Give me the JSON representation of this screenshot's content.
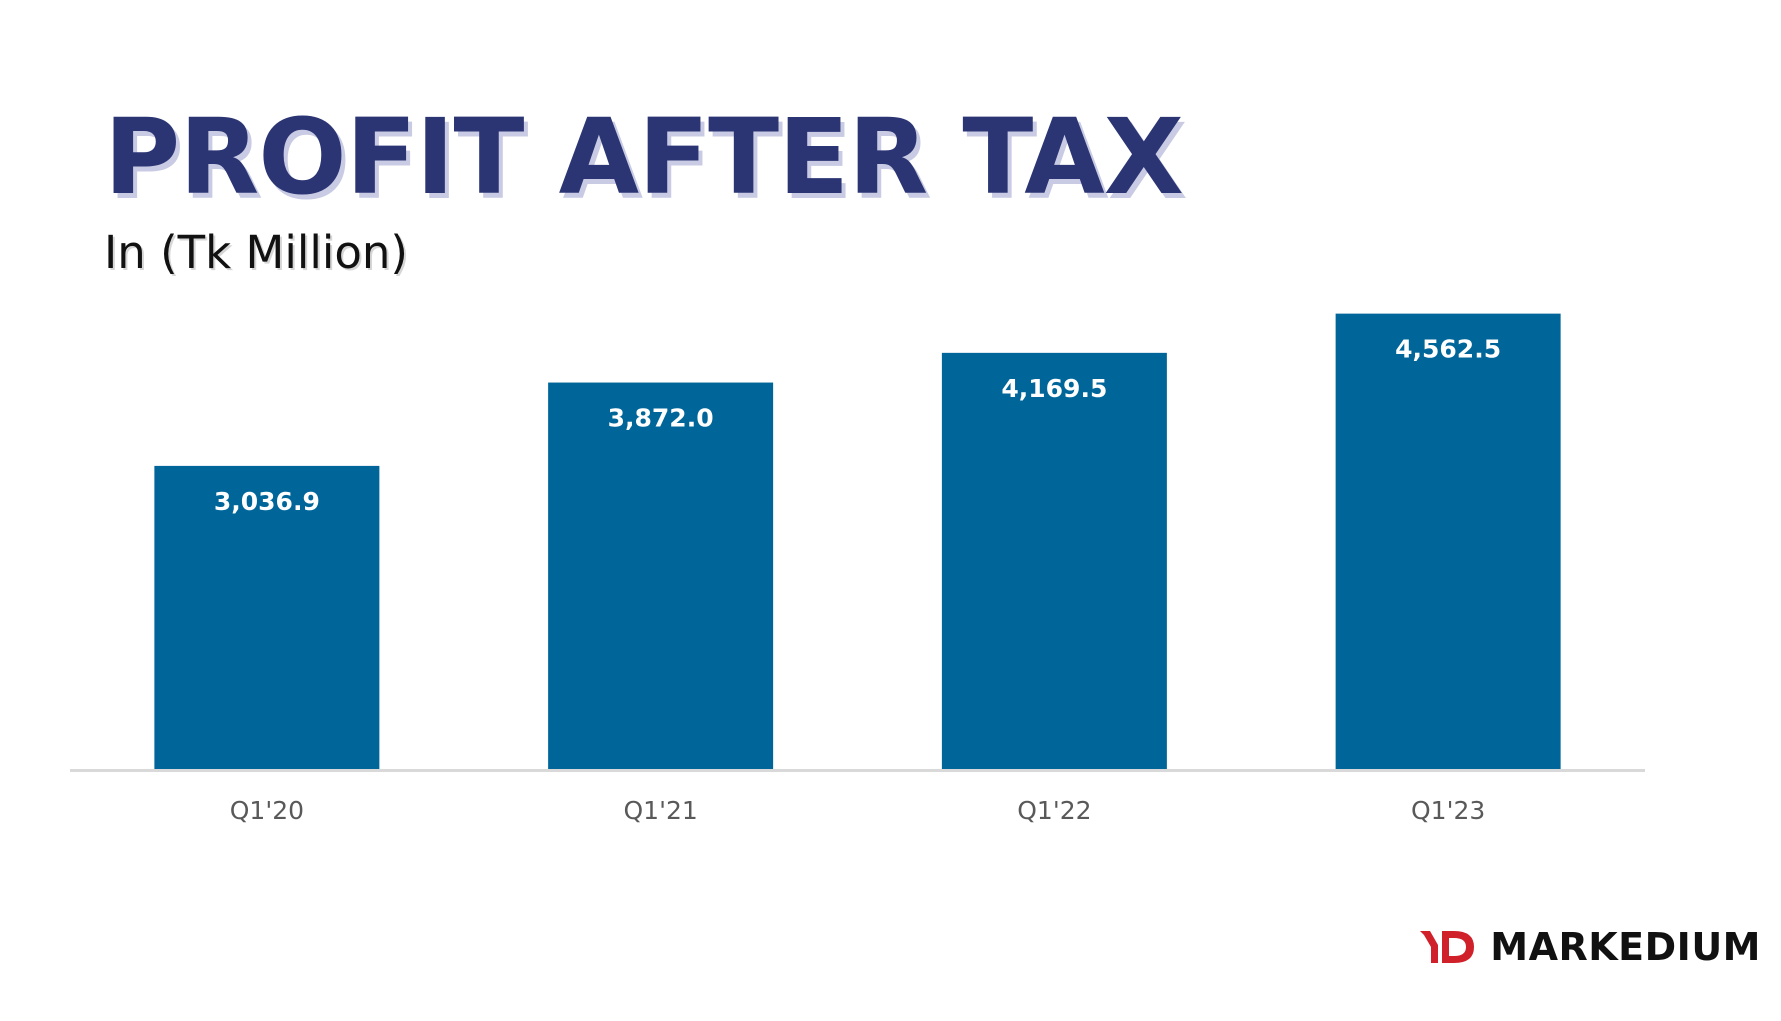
{
  "header": {
    "title": "PROFIT AFTER TAX",
    "subtitle": "In (Tk Million)"
  },
  "chart_data": {
    "type": "bar",
    "title": "PROFIT AFTER TAX",
    "subtitle": "In (Tk Million)",
    "categories": [
      "Q1'20",
      "Q1'21",
      "Q1'22",
      "Q1'23"
    ],
    "values": [
      3036.9,
      3872.0,
      4169.5,
      4562.5
    ],
    "data_labels": [
      "3,036.9",
      "3,872.0",
      "4,169.5",
      "4,562.5"
    ],
    "ylim": [
      0,
      5200
    ],
    "grid": false,
    "legend": "none",
    "colors": {
      "bar": "#006699",
      "axis": "#d9d9d9",
      "tick_text": "#595959",
      "data_label": "#ffffff"
    }
  },
  "brand": {
    "name": "MARKEDIUM",
    "mark": "MD",
    "colors": {
      "mark": "#d0202a",
      "text": "#111111"
    }
  },
  "colors": {
    "title": "#2b3574",
    "subtitle": "#111111",
    "background": "#ffffff"
  }
}
